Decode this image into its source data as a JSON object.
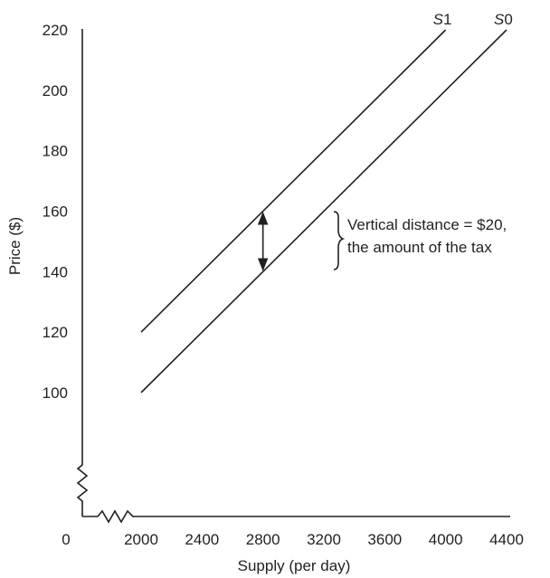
{
  "chart_data": {
    "type": "line",
    "xlabel": "Supply (per day)",
    "ylabel": "Price ($)",
    "x_ticks": [
      2000,
      2400,
      2800,
      3200,
      3600,
      4000,
      4400
    ],
    "x_origin_label": "0",
    "y_ticks": [
      100,
      120,
      140,
      160,
      180,
      200,
      220
    ],
    "xlim": [
      1600,
      4400
    ],
    "ylim": [
      80,
      220
    ],
    "axis_breaks": true,
    "grid": false,
    "series": [
      {
        "name": "S1",
        "x": [
          2000,
          4000
        ],
        "y": [
          120,
          220
        ]
      },
      {
        "name": "S0",
        "x": [
          2000,
          4400
        ],
        "y": [
          100,
          220
        ]
      }
    ],
    "series_label_parts": [
      {
        "letter": "S",
        "sub": "1"
      },
      {
        "letter": "S",
        "sub": "0"
      }
    ],
    "arrow": {
      "x": 2800,
      "y_from": 140,
      "y_to": 160
    },
    "annotation": [
      "Vertical distance = $20,",
      "the amount of the tax"
    ],
    "colors": {
      "ink": "#231f20"
    }
  }
}
